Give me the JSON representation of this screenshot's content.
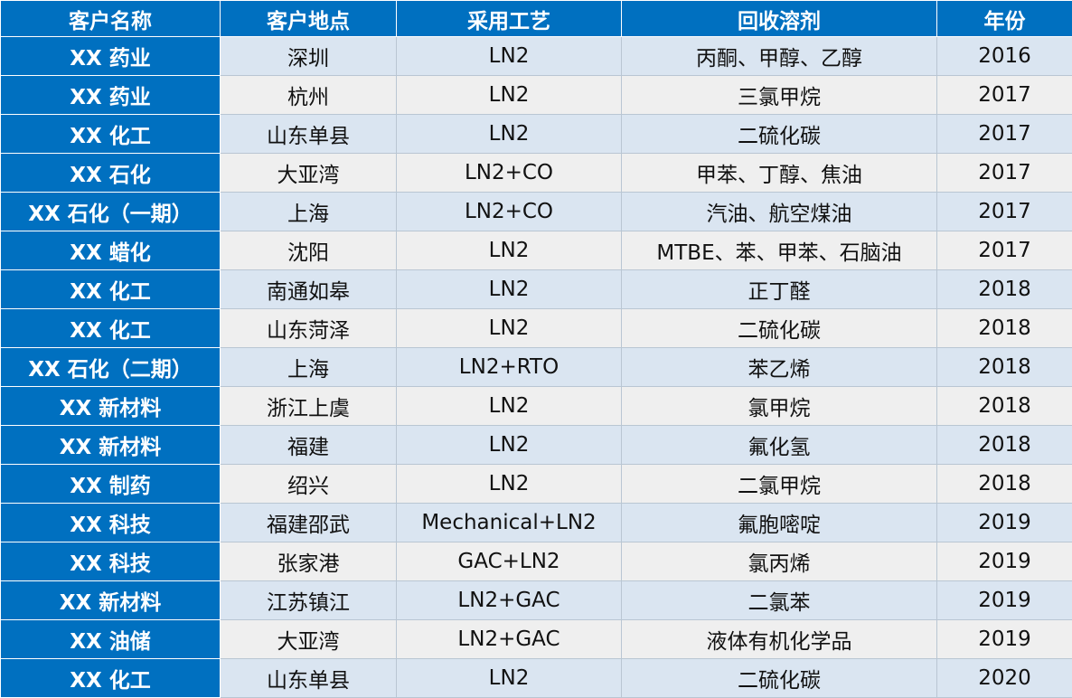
{
  "table": {
    "columns": [
      "客户名称",
      "客户地点",
      "采用工艺",
      "回收溶剂",
      "年份"
    ],
    "rows": [
      [
        "XX 药业",
        "深圳",
        "LN2",
        "丙酮、甲醇、乙醇",
        2016
      ],
      [
        "XX 药业",
        "杭州",
        "LN2",
        "三氯甲烷",
        2017
      ],
      [
        "XX 化工",
        "山东单县",
        "LN2",
        "二硫化碳",
        2017
      ],
      [
        "XX 石化",
        "大亚湾",
        "LN2+CO",
        "甲苯、丁醇、焦油",
        2017
      ],
      [
        "XX 石化（一期）",
        "上海",
        "LN2+CO",
        "汽油、航空煤油",
        2017
      ],
      [
        "XX 蜡化",
        "沈阳",
        "LN2",
        "MTBE、苯、甲苯、石脑油",
        2017
      ],
      [
        "XX 化工",
        "南通如皋",
        "LN2",
        "正丁醛",
        2018
      ],
      [
        "XX 化工",
        "山东菏泽",
        "LN2",
        "二硫化碳",
        2018
      ],
      [
        "XX 石化（二期）",
        "上海",
        "LN2+RTO",
        "苯乙烯",
        2018
      ],
      [
        "XX 新材料",
        "浙江上虞",
        "LN2",
        "氯甲烷",
        2018
      ],
      [
        "XX 新材料",
        "福建",
        "LN2",
        "氟化氢",
        2018
      ],
      [
        "XX 制药",
        "绍兴",
        "LN2",
        "二氯甲烷",
        2018
      ],
      [
        "XX 科技",
        "福建邵武",
        "Mechanical+LN2",
        "氟胞嘧啶",
        2019
      ],
      [
        "XX 科技",
        "张家港",
        "GAC+LN2",
        "氯丙烯",
        2019
      ],
      [
        "XX 新材料",
        "江苏镇江",
        "LN2+GAC",
        "二氯苯",
        2019
      ],
      [
        "XX 油储",
        "大亚湾",
        "LN2+GAC",
        "液体有机化学品",
        2019
      ],
      [
        "XX 化工",
        "山东单县",
        "LN2",
        "二硫化碳",
        2020
      ]
    ]
  }
}
